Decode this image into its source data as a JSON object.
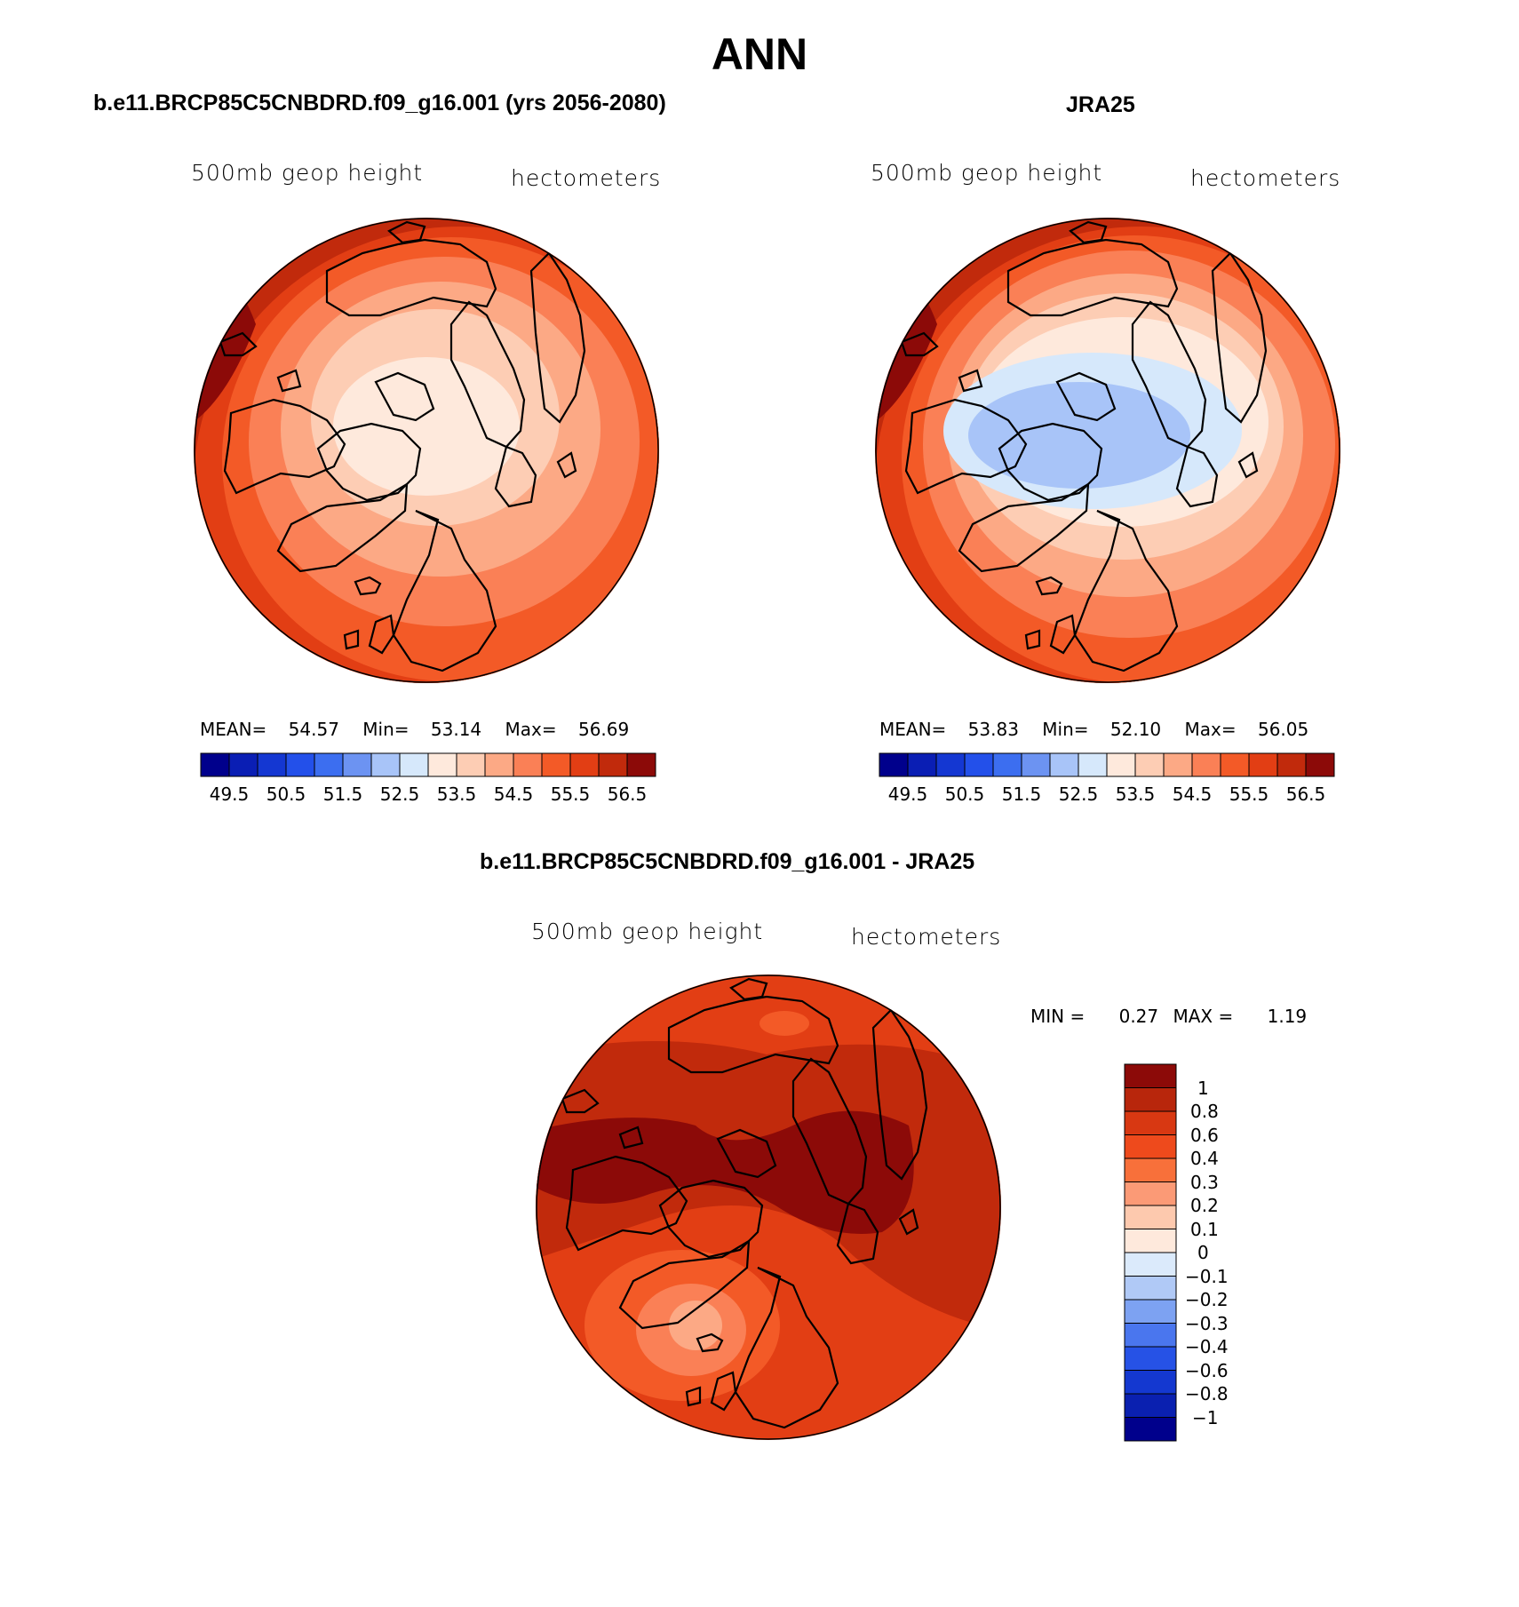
{
  "page_title": "ANN",
  "palette": [
    "#00008c",
    "#0a1eb4",
    "#1437d2",
    "#2350ea",
    "#3c6ef0",
    "#6c93f2",
    "#a8c4f8",
    "#d6e8fb",
    "#fee9dc",
    "#fdcdb4",
    "#fca985",
    "#fa8056",
    "#f35a27",
    "#e23e14",
    "#c12a0c",
    "#8c0a08"
  ],
  "panels": [
    {
      "title": "b.e11.BRCP85C5CNBDRD.f09_g16.001 (yrs 2056-2080)",
      "variable": "500mb geop height",
      "units": "hectometers",
      "mean_label": "MEAN=",
      "mean": "54.57",
      "min_label": "Min=",
      "min": "53.14",
      "max_label": "Max=",
      "max": "56.69",
      "colorbar_labels": [
        "49.5",
        "50.5",
        "51.5",
        "52.5",
        "53.5",
        "54.5",
        "55.5",
        "56.5"
      ]
    },
    {
      "title": "JRA25",
      "variable": "500mb geop height",
      "units": "hectometers",
      "mean_label": "MEAN=",
      "mean": "53.83",
      "min_label": "Min=",
      "min": "52.10",
      "max_label": "Max=",
      "max": "56.05",
      "colorbar_labels": [
        "49.5",
        "50.5",
        "51.5",
        "52.5",
        "53.5",
        "54.5",
        "55.5",
        "56.5"
      ]
    }
  ],
  "difference": {
    "title": "b.e11.BRCP85C5CNBDRD.f09_g16.001 - JRA25",
    "variable": "500mb geop height",
    "units": "hectometers",
    "min_label": "MIN =",
    "min": "0.27",
    "max_label": "MAX =",
    "max": "1.19",
    "colorbar_labels": [
      "1",
      "0.8",
      "0.6",
      "0.4",
      "0.3",
      "0.2",
      "0.1",
      "0",
      "−0.1",
      "−0.2",
      "−0.3",
      "−0.4",
      "−0.6",
      "−0.8",
      "−1"
    ],
    "palette": [
      "#8c0a08",
      "#b8260c",
      "#d83812",
      "#ee4a1c",
      "#f8703a",
      "#fb9a76",
      "#fdc9ae",
      "#fee9dc",
      "#dbeafb",
      "#b0c9f6",
      "#7da2f2",
      "#4a76ee",
      "#2652e6",
      "#1438d0",
      "#0a20b0",
      "#00008c"
    ]
  }
}
